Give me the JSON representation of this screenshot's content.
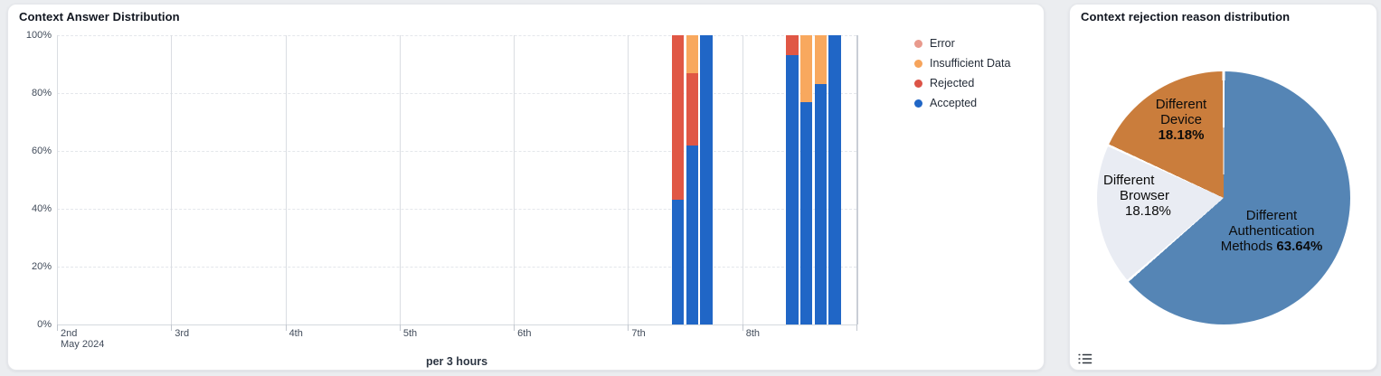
{
  "left_panel": {
    "title": "Context Answer Distribution",
    "x_axis_title": "per 3 hours",
    "x_axis_start_sublabel": "May 2024",
    "y_ticks": [
      "100%",
      "80%",
      "60%",
      "40%",
      "20%",
      "0%"
    ],
    "x_ticks": [
      "2nd",
      "3rd",
      "4th",
      "5th",
      "6th",
      "7th",
      "8th"
    ],
    "legend": [
      {
        "label": "Error",
        "color": "#e89a8d"
      },
      {
        "label": "Insufficient Data",
        "color": "#f6a45c"
      },
      {
        "label": "Rejected",
        "color": "#dc5447"
      },
      {
        "label": "Accepted",
        "color": "#2066c6"
      }
    ]
  },
  "right_panel": {
    "title": "Context rejection reason distribution",
    "labels": {
      "device": {
        "line1": "Different",
        "line2": "Device",
        "pct": "18.18%"
      },
      "browser": {
        "line1": "Different",
        "line2": "Browser",
        "pct": "18.18%"
      },
      "auth": {
        "line1": "Different",
        "line2": "Authentication",
        "line3": "Methods",
        "pct": "63.64%"
      }
    }
  },
  "chart_data": [
    {
      "type": "bar",
      "stacked": true,
      "title": "Context Answer Distribution",
      "xlabel": "per 3 hours",
      "ylabel": "",
      "ylim": [
        0,
        100
      ],
      "y_tick_labels": [
        "0%",
        "20%",
        "40%",
        "60%",
        "80%",
        "100%"
      ],
      "x_axis": {
        "start_label": "2nd May 2024",
        "tick_labels": [
          "2nd",
          "3rd",
          "4th",
          "5th",
          "6th",
          "7th",
          "8th"
        ],
        "interval": "per 3 hours",
        "bar_width_days": 0.125
      },
      "legend_position": "right",
      "series_names": [
        "Error",
        "Insufficient Data",
        "Rejected",
        "Accepted"
      ],
      "colors": {
        "accepted": "#2066c6",
        "rejected": "#e05745",
        "insufficient_data": "#f8a85e",
        "error": "#e89a8d"
      },
      "bars": [
        {
          "day_offset_from_may2": 5.375,
          "accepted": 43,
          "rejected": 57,
          "insufficient_data": 0,
          "error": 0
        },
        {
          "day_offset_from_may2": 5.5,
          "accepted": 62,
          "rejected": 25,
          "insufficient_data": 13,
          "error": 0
        },
        {
          "day_offset_from_may2": 5.625,
          "accepted": 100,
          "rejected": 0,
          "insufficient_data": 0,
          "error": 0
        },
        {
          "day_offset_from_may2": 6.375,
          "accepted": 93,
          "rejected": 7,
          "insufficient_data": 0,
          "error": 0
        },
        {
          "day_offset_from_may2": 6.5,
          "accepted": 77,
          "rejected": 0,
          "insufficient_data": 23,
          "error": 0
        },
        {
          "day_offset_from_may2": 6.625,
          "accepted": 83,
          "rejected": 0,
          "insufficient_data": 17,
          "error": 0
        },
        {
          "day_offset_from_may2": 6.75,
          "accepted": 100,
          "rejected": 0,
          "insufficient_data": 0,
          "error": 0
        }
      ]
    },
    {
      "type": "pie",
      "title": "Context rejection reason distribution",
      "start_angle_deg": 0,
      "direction": "clockwise",
      "labels_inside": true,
      "slices": [
        {
          "label": "Different Authentication Methods",
          "value": 63.64,
          "color": "#5585b5"
        },
        {
          "label": "Different Browser",
          "value": 18.18,
          "color": "#e9ecf3"
        },
        {
          "label": "Different Device",
          "value": 18.18,
          "color": "#ca7d3c"
        }
      ]
    }
  ]
}
